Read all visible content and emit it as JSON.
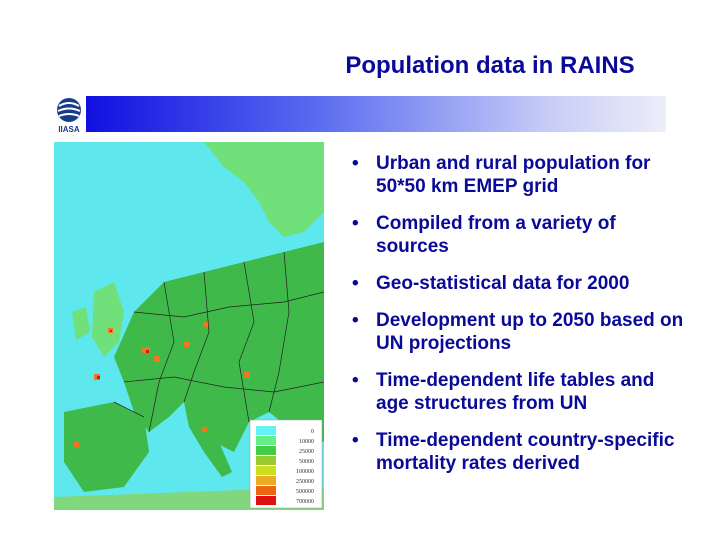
{
  "slide": {
    "title": "Population data in RAINS",
    "logo_text": "IIASA",
    "bullets": [
      "Urban and rural population for 50*50 km EMEP grid",
      "Compiled from a variety of sources",
      "Geo-statistical data for 2000",
      "Development up to 2050 based on UN projections",
      "Time-dependent life tables and age structures from UN",
      "Time-dependent country-specific mortality rates derived"
    ]
  },
  "map": {
    "legend": {
      "labels": [
        "0",
        "10000",
        "25000",
        "50000",
        "100000",
        "250000",
        "500000",
        "700000"
      ],
      "colors": [
        "#66f2f2",
        "#66ee88",
        "#44cc44",
        "#99cc33",
        "#ccdd22",
        "#eeaa22",
        "#ee6611",
        "#dd1111"
      ]
    },
    "colors": {
      "sea": "#5ee8ee",
      "land_low": "#6fe07a",
      "land_mid": "#3fb94a",
      "land_high": "#99cc33",
      "urban": "#ee7722",
      "border": "#222222"
    }
  }
}
